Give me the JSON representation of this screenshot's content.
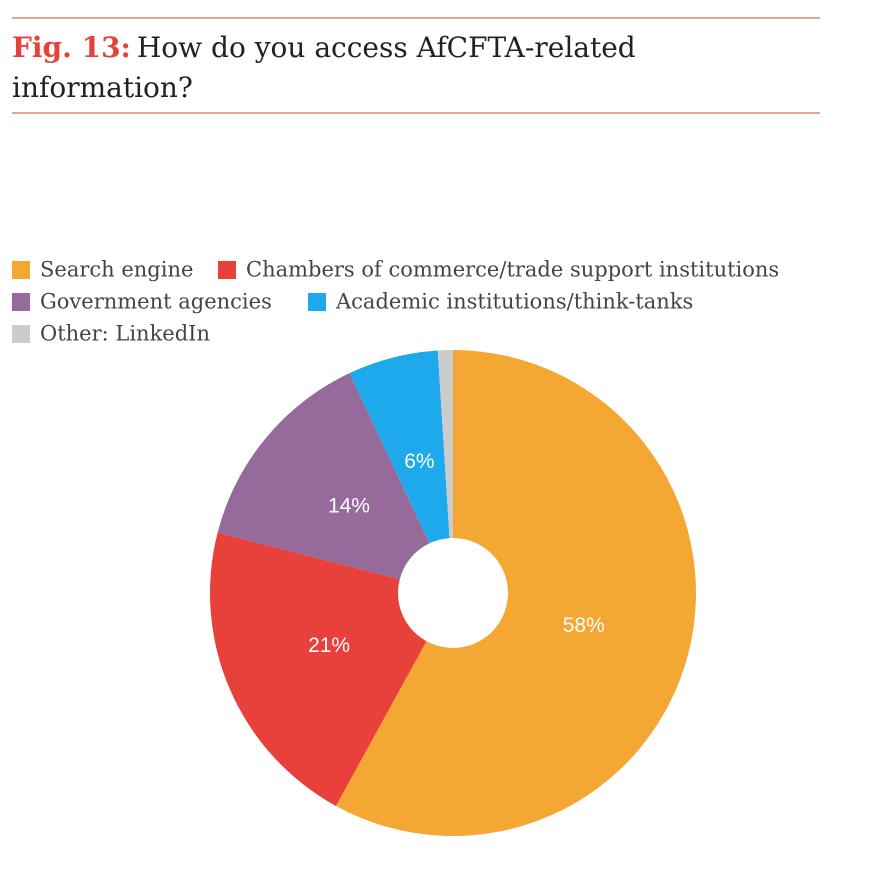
{
  "chart_data": {
    "type": "donut",
    "figure_label": "Fig. 13:",
    "title": "How do you access AfCFTA-related information?",
    "categories": [
      "Search engine",
      "Chambers of commerce/trade support institutions",
      "Government agencies",
      "Academic institutions/think-tanks",
      "Other: LinkedIn"
    ],
    "values": [
      58,
      21,
      14,
      6,
      1
    ],
    "value_labels": [
      "58%",
      "21%",
      "14%",
      "6%",
      null
    ],
    "colors": [
      "#f5a733",
      "#e8403a",
      "#976a9c",
      "#1ea9ec",
      "#cccccc"
    ],
    "legend": "top-left"
  }
}
